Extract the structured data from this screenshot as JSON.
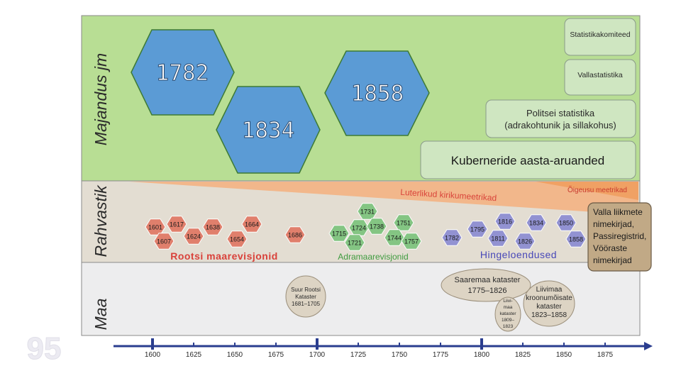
{
  "bands": {
    "economy": {
      "label": "Majandus jm",
      "color": "#b8de94"
    },
    "population": {
      "label": "Rahvastik",
      "color": "#e3ddd2"
    },
    "land": {
      "label": "Maa",
      "color": "#ededee"
    }
  },
  "economy": {
    "big_years": [
      "1782",
      "1834",
      "1858"
    ],
    "boxes": [
      {
        "lines": [
          "Statistikakomiteed"
        ]
      },
      {
        "lines": [
          "Vallastatistika"
        ]
      },
      {
        "lines": [
          "Politsei statistika",
          "(adrakohtunik ja sillakohus)"
        ]
      },
      {
        "lines": [
          "Kuberneride aasta-aruanded"
        ]
      }
    ]
  },
  "population": {
    "church_records": "Luterlikud kirikumeetrikad",
    "orthodox_records": "Õigeusu meetrikad",
    "groups": [
      {
        "label": "Rootsi maarevisjonid",
        "color": "#e07b67",
        "label_color": "#d9413a",
        "years": [
          "1601",
          "1617",
          "1638",
          "1664",
          "1607",
          "1624",
          "1654",
          "1686"
        ]
      },
      {
        "label": "Adramaarevisjonid",
        "color": "#7fc47f",
        "label_color": "#3f9b3f",
        "years": [
          "1731",
          "1724",
          "1738",
          "1751",
          "1715",
          "1744",
          "1721",
          "1757"
        ]
      },
      {
        "label": "Hingeloendused",
        "color": "#8e8ed2",
        "label_color": "#4848b8",
        "years": [
          "1816",
          "1834",
          "1850",
          "1795",
          "1782",
          "1811",
          "1826",
          "1858"
        ]
      }
    ],
    "village_box": {
      "lines": [
        "Valla liikmete",
        "nimekirjad,",
        "Passiregistrid,",
        "Vööraste",
        "nimekirjad"
      ]
    }
  },
  "land": {
    "cadastres": [
      {
        "lines": [
          "Suur Rootsi",
          "Kataster",
          "1681–1705"
        ]
      },
      {
        "lines": [
          "Saaremaa kataster",
          "1775–1826"
        ]
      },
      {
        "lines": [
          "Liivimaa",
          "kroonumõisate",
          "kataster",
          "1823–1858"
        ]
      },
      {
        "lines": [
          "Liivi-",
          "maa",
          "kataster",
          "1809–",
          "1823"
        ]
      }
    ]
  },
  "timeline": {
    "ticks": [
      "1600",
      "1625",
      "1650",
      "1675",
      "1700",
      "1725",
      "1750",
      "1775",
      "1800",
      "1825",
      "1850",
      "1875"
    ],
    "color": "#2a3d8f"
  },
  "watermark": {
    "text": "95"
  }
}
